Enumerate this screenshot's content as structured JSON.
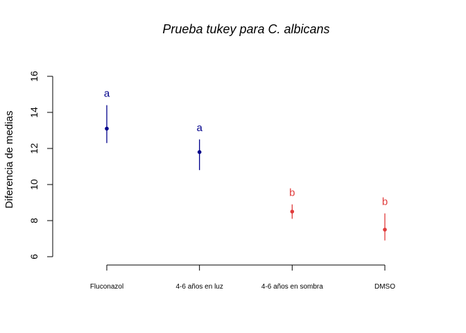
{
  "chart_data": {
    "type": "scatter",
    "title": "Prueba tukey para C. albicans",
    "xlabel": "",
    "ylabel": "Diferencia de medias",
    "ylim": [
      6,
      16
    ],
    "y_ticks": [
      "6",
      "8",
      "10",
      "12",
      "14",
      "16"
    ],
    "grid": false,
    "categories": [
      "Fluconazol",
      "4-6 años en luz",
      "4-6 años en sombra",
      "DMSO"
    ],
    "points": [
      {
        "category": "Fluconazol",
        "mean": 13.1,
        "lower": 12.3,
        "upper": 14.4,
        "group": "a",
        "color": "#00008B"
      },
      {
        "category": "4-6 años en luz",
        "mean": 11.8,
        "lower": 10.8,
        "upper": 12.5,
        "group": "a",
        "color": "#00008B"
      },
      {
        "category": "4-6 años en sombra",
        "mean": 8.5,
        "lower": 8.1,
        "upper": 8.9,
        "group": "b",
        "color": "#E03C3C"
      },
      {
        "category": "DMSO",
        "mean": 7.5,
        "lower": 6.9,
        "upper": 8.4,
        "group": "b",
        "color": "#E03C3C"
      }
    ]
  }
}
